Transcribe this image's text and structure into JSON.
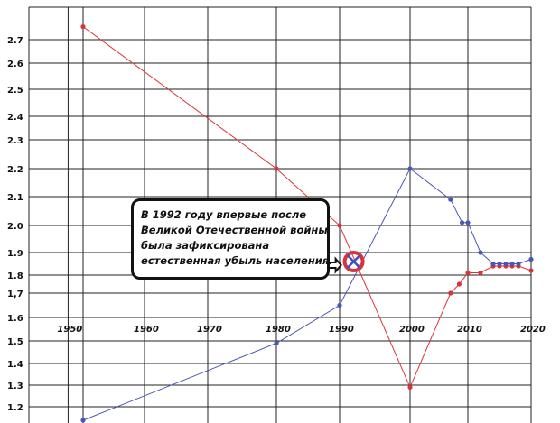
{
  "chart_data": {
    "type": "line",
    "title": "",
    "xlabel": "",
    "ylabel": "",
    "xlim": [
      1945,
      2020
    ],
    "ylim": [
      1.15,
      2.8
    ],
    "grid": true,
    "x_ticks": [
      "1950",
      "1960",
      "1970",
      "1980",
      "1990",
      "2000",
      "2010",
      "2020"
    ],
    "y_ticks": [
      {
        "value": 2.7,
        "label": "2.7"
      },
      {
        "value": 2.6,
        "label": "2.6"
      },
      {
        "value": 2.5,
        "label": "2.5"
      },
      {
        "value": 2.4,
        "label": "2.4"
      },
      {
        "value": 2.3,
        "label": "2.3"
      },
      {
        "value": 2.2,
        "label": "2.2"
      },
      {
        "value": 2.1,
        "label": "2.1"
      },
      {
        "value": 2.0,
        "label": "2.0"
      },
      {
        "value": 1.9,
        "label": "1.9"
      },
      {
        "value": 1.8,
        "label": "1.8"
      },
      {
        "value": 1.7,
        "label": "1,7"
      },
      {
        "value": 1.6,
        "label": "1.6"
      },
      {
        "value": 1.5,
        "label": "1.5"
      },
      {
        "value": 1.4,
        "label": "1.4"
      },
      {
        "value": 1.3,
        "label": "1.3"
      },
      {
        "value": 1.2,
        "label": "1.2"
      }
    ],
    "series": [
      {
        "color": "#d9343a",
        "points": [
          [
            1952,
            2.74
          ],
          [
            1980,
            2.2
          ],
          [
            1990,
            2.0
          ],
          [
            2000,
            1.29
          ],
          [
            2007,
            1.7
          ],
          [
            2008.5,
            1.75
          ],
          [
            2010,
            1.81
          ],
          [
            2012,
            1.81
          ],
          [
            2014,
            1.84
          ],
          [
            2015,
            1.84
          ],
          [
            2016,
            1.84
          ],
          [
            2017,
            1.84
          ],
          [
            2018,
            1.84
          ],
          [
            2020,
            1.82
          ]
        ],
        "markers": [
          [
            1952,
            2.74
          ],
          [
            1980,
            2.2
          ],
          [
            1990,
            2.0
          ],
          [
            2000,
            1.29
          ],
          [
            2007,
            1.7
          ],
          [
            2008.5,
            1.75
          ],
          [
            2010,
            1.81
          ],
          [
            2012,
            1.81
          ],
          [
            2014,
            1.84
          ],
          [
            2015,
            1.84
          ],
          [
            2016,
            1.84
          ],
          [
            2017,
            1.84
          ],
          [
            2018,
            1.84
          ],
          [
            2020,
            1.82
          ]
        ]
      },
      {
        "color": "#4a55b5",
        "points": [
          [
            1952,
            1.15
          ],
          [
            1980,
            1.49
          ],
          [
            1990,
            1.65
          ],
          [
            2000,
            2.2
          ],
          [
            2007,
            2.09
          ],
          [
            2009,
            2.01
          ],
          [
            2010,
            2.01
          ],
          [
            2012,
            1.9
          ],
          [
            2014,
            1.85
          ],
          [
            2015,
            1.85
          ],
          [
            2016,
            1.85
          ],
          [
            2017,
            1.85
          ],
          [
            2018,
            1.85
          ],
          [
            2020,
            1.87
          ]
        ],
        "markers": [
          [
            1952,
            1.15
          ],
          [
            1980,
            1.49
          ],
          [
            1990,
            1.65
          ],
          [
            2000,
            2.2
          ],
          [
            2007,
            2.09
          ],
          [
            2009,
            2.01
          ],
          [
            2010,
            2.01
          ],
          [
            2012,
            1.9
          ],
          [
            2014,
            1.85
          ],
          [
            2015,
            1.85
          ],
          [
            2016,
            1.85
          ],
          [
            2017,
            1.85
          ],
          [
            2018,
            1.85
          ],
          [
            2020,
            1.87
          ]
        ]
      }
    ],
    "crossover": {
      "x": 1992,
      "y": 1.86
    },
    "annotation": {
      "lines": [
        "В 1992 году впервые после",
        "Великой Отечественной войны",
        "была зафиксирована",
        "естественная убыль населения."
      ],
      "arrow": "right",
      "points_to": "crossover"
    }
  },
  "colors": {
    "marker_circle": "#d9343a",
    "marker_cross": "#3b4fc4"
  }
}
